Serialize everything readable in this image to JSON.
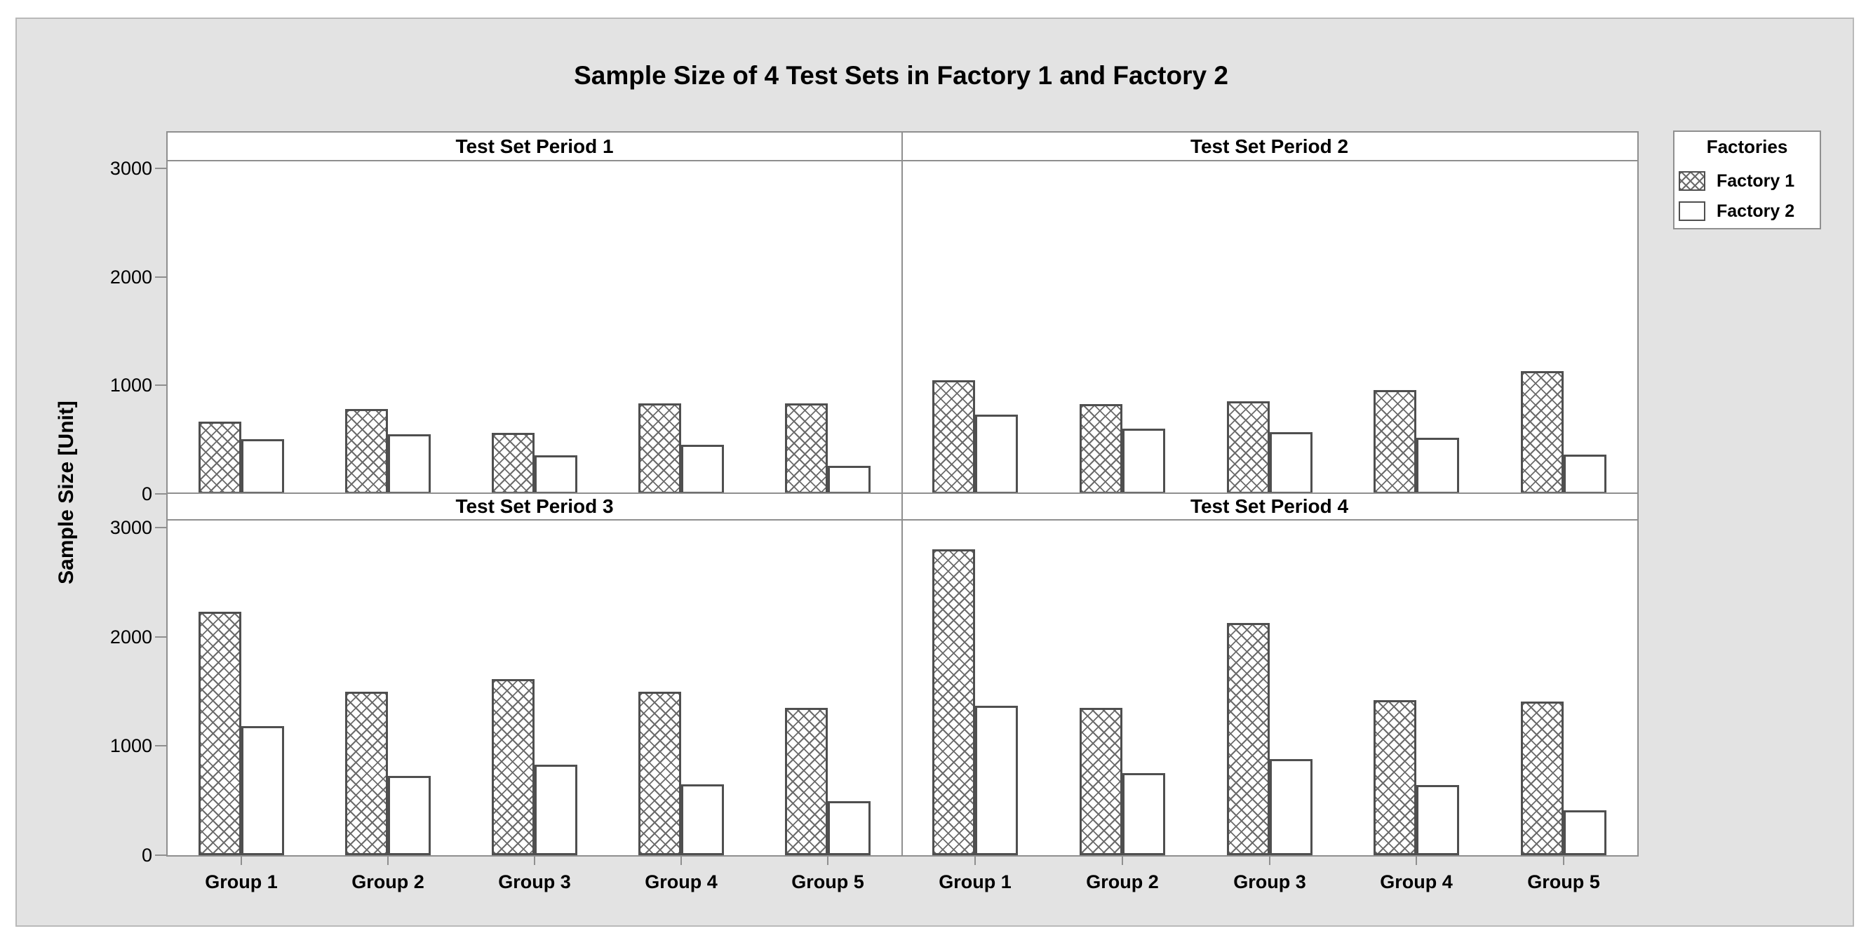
{
  "title": "Sample Size of 4 Test Sets in Factory 1 and Factory 2",
  "ylabel": "Sample Size [Unit]",
  "legend": {
    "title": "Factories",
    "items": [
      {
        "label": "Factory 1",
        "swatch": "crosshatch"
      },
      {
        "label": "Factory 2",
        "swatch": "white"
      }
    ]
  },
  "colors": {
    "canvas_bg": "#e3e3e3",
    "canvas_border": "#b9b9b9",
    "plot_bg": "#ffffff",
    "frame_gray": "#8f8f8f",
    "bar_border": "#4f4f4f",
    "hatch_line": "#6b6b6b",
    "text": "#111111"
  },
  "chart_data": {
    "type": "bar",
    "categories": [
      "Group 1",
      "Group 2",
      "Group 3",
      "Group 4",
      "Group 5"
    ],
    "yticks": [
      0,
      1000,
      2000,
      3000
    ],
    "ylim": [
      0,
      3065
    ],
    "grid": false,
    "legend_position": "top-right",
    "panels": [
      {
        "title": "Test Set Period 1",
        "series": [
          {
            "name": "Factory 1",
            "values": [
              665,
              780,
              565,
              835,
              835
            ]
          },
          {
            "name": "Factory 2",
            "values": [
              505,
              550,
              355,
              455,
              260
            ]
          }
        ]
      },
      {
        "title": "Test Set Period 2",
        "series": [
          {
            "name": "Factory 1",
            "values": [
              1045,
              830,
              855,
              960,
              1130
            ]
          },
          {
            "name": "Factory 2",
            "values": [
              730,
              600,
              570,
              520,
              360
            ]
          }
        ]
      },
      {
        "title": "Test Set Period 3",
        "series": [
          {
            "name": "Factory 1",
            "values": [
              2230,
              1500,
              1615,
              1495,
              1350
            ]
          },
          {
            "name": "Factory 2",
            "values": [
              1180,
              725,
              830,
              650,
              495
            ]
          }
        ]
      },
      {
        "title": "Test Set Period 4",
        "series": [
          {
            "name": "Factory 1",
            "values": [
              2800,
              1350,
              2130,
              1420,
              1405
            ]
          },
          {
            "name": "Factory 2",
            "values": [
              1370,
              750,
              880,
              640,
              410
            ]
          }
        ]
      }
    ]
  }
}
